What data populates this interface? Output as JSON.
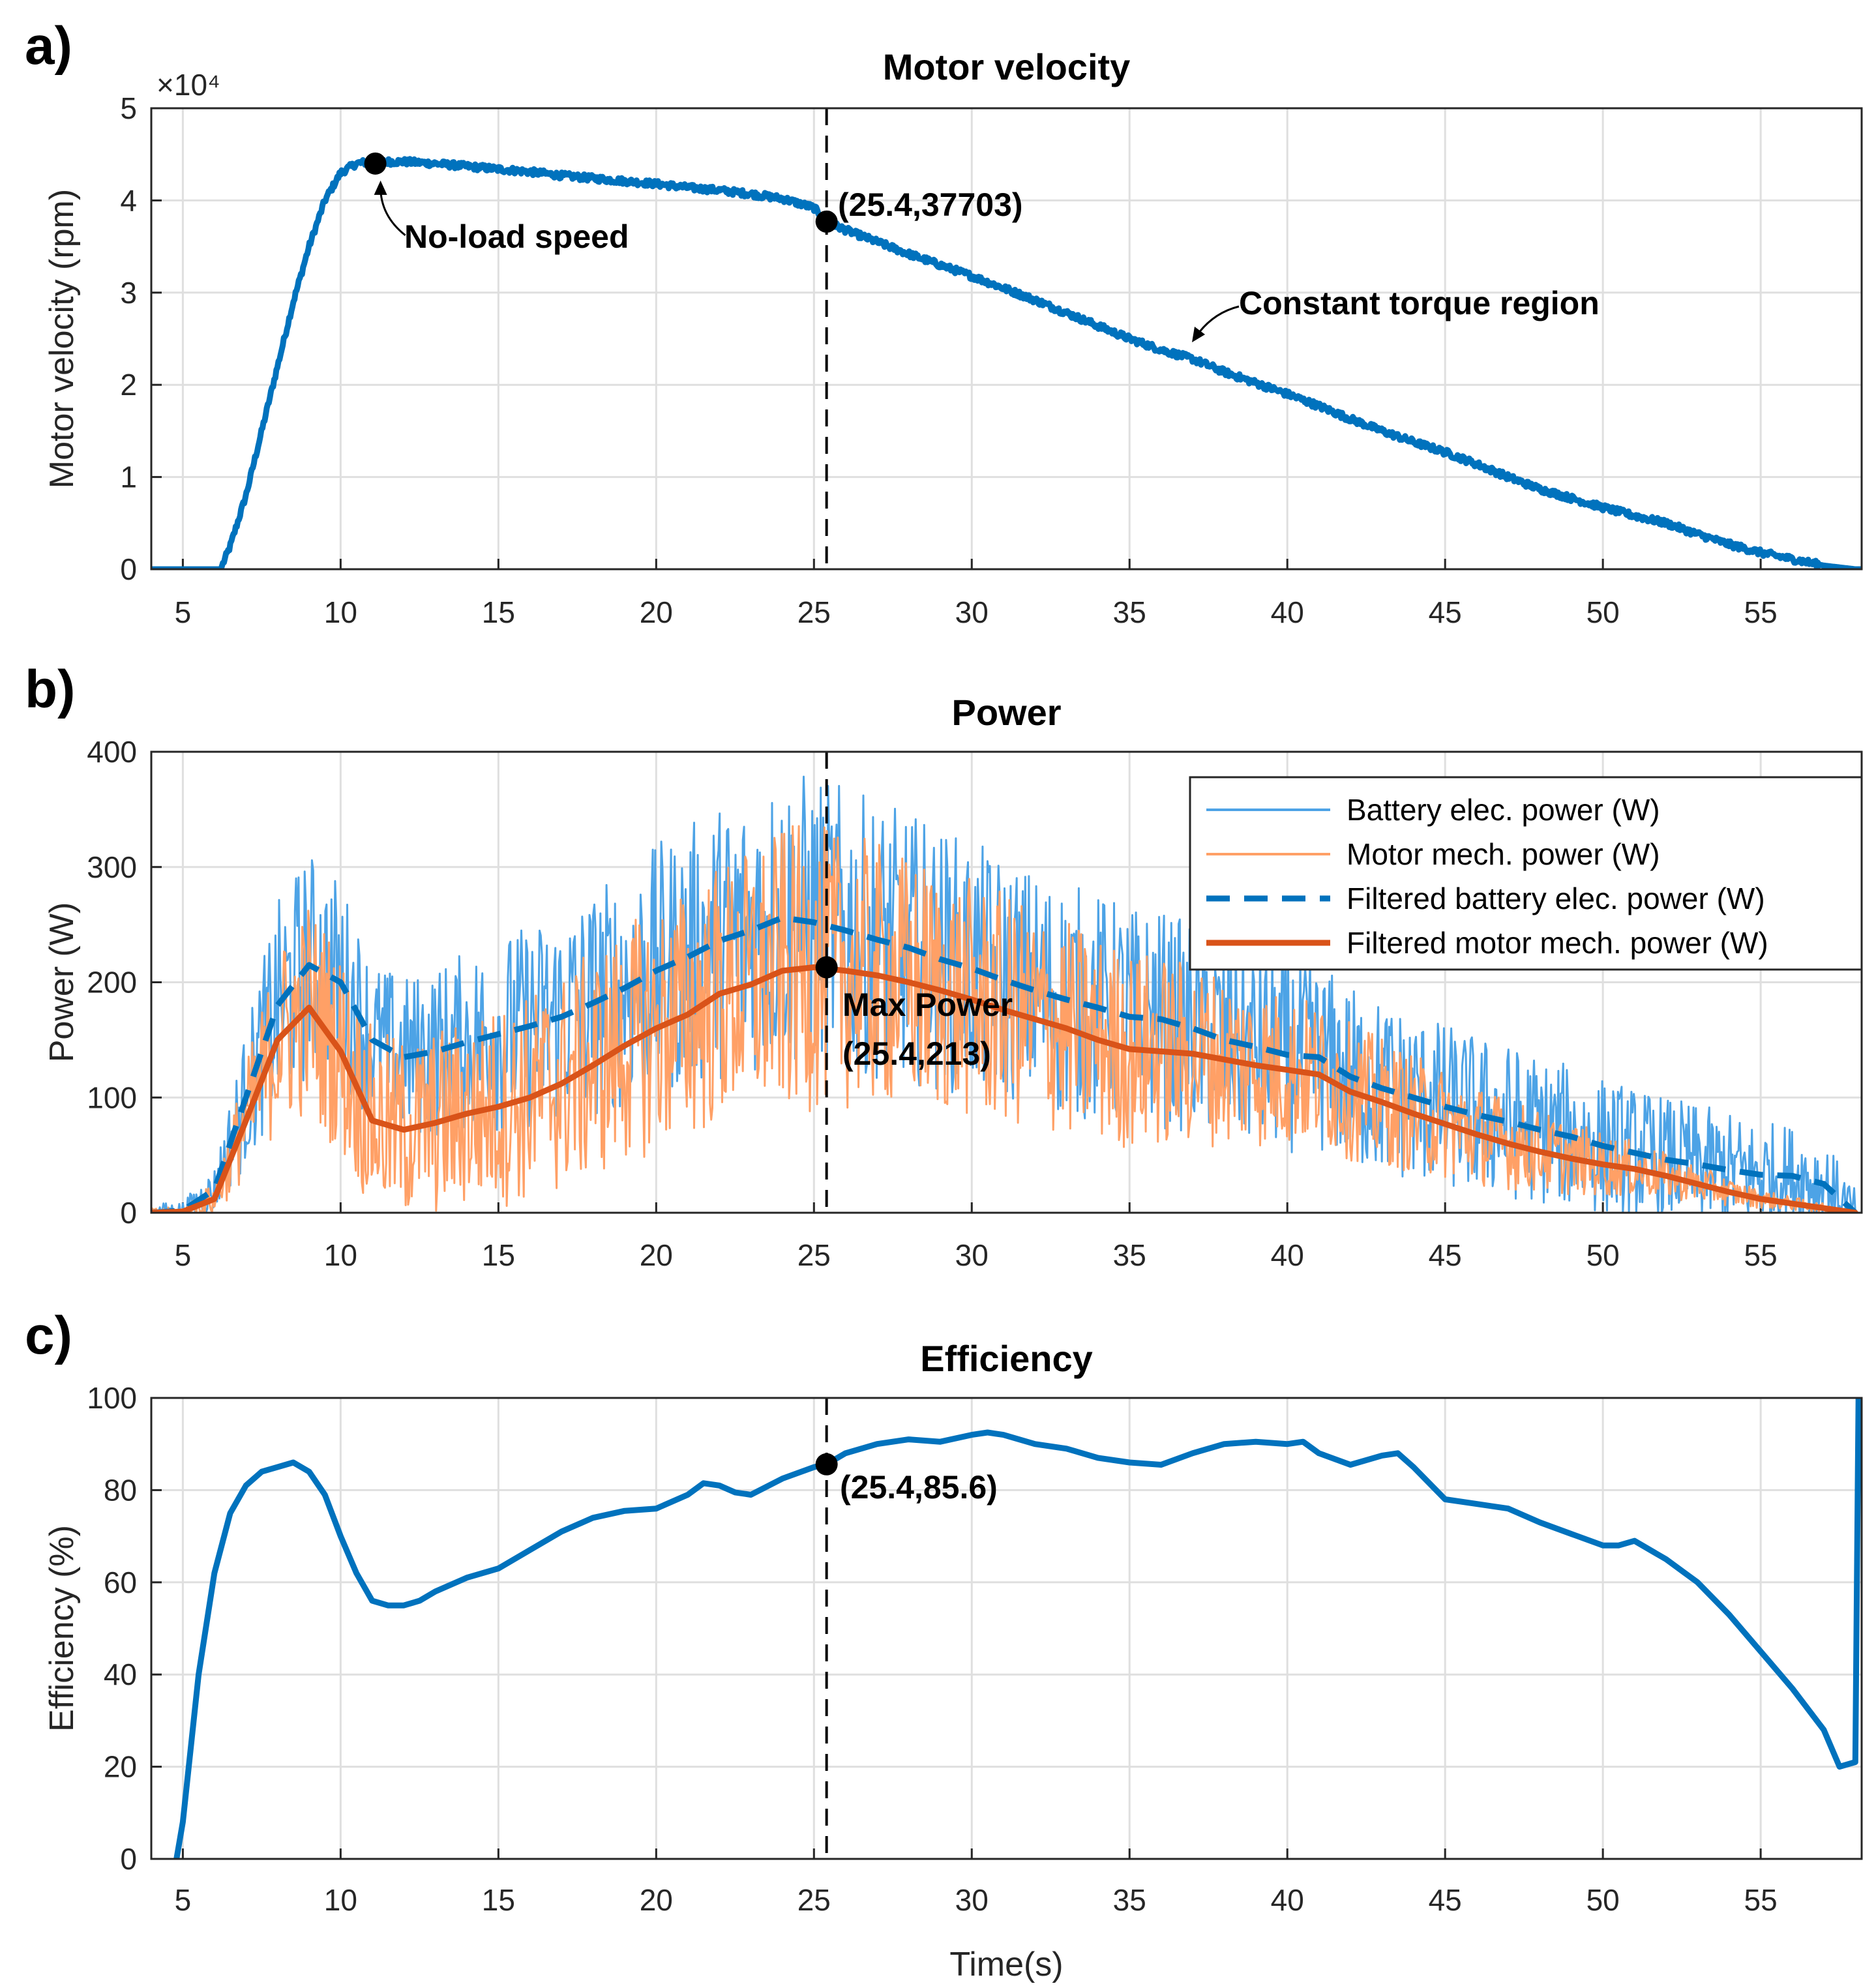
{
  "chart_data": [
    {
      "panel_label": "a)",
      "type": "line",
      "title": "Motor velocity",
      "xlabel": "",
      "ylabel": "Motor velocity (rpm)",
      "y_exponent": "×10⁴",
      "xlim": [
        4,
        58.2
      ],
      "ylim": [
        0,
        5
      ],
      "xticks": [
        5,
        10,
        15,
        20,
        25,
        30,
        35,
        40,
        45,
        50,
        55
      ],
      "yticks": [
        0,
        1,
        2,
        3,
        4,
        5
      ],
      "grid": true,
      "color": "#0072BD",
      "series": [
        {
          "name": "Motor velocity",
          "color": "#0072BD",
          "x": [
            4,
            5,
            6,
            6.2,
            6.5,
            7,
            7.5,
            8,
            8.5,
            9,
            9.5,
            10,
            10.5,
            11,
            12,
            13,
            14,
            15,
            16,
            17,
            18,
            19,
            20,
            21,
            22,
            23,
            24,
            25,
            25.4,
            26,
            27,
            28,
            29,
            30,
            31,
            32,
            33,
            34,
            35,
            36,
            37,
            38,
            39,
            40,
            41,
            42,
            43,
            44,
            45,
            46,
            47,
            48,
            49,
            50,
            51,
            52,
            53,
            54,
            55,
            56,
            57,
            57.5,
            58,
            58.2
          ],
          "y": [
            0,
            0,
            0,
            0,
            0.25,
            0.8,
            1.5,
            2.2,
            2.9,
            3.5,
            4.0,
            4.3,
            4.4,
            4.42,
            4.42,
            4.4,
            4.37,
            4.34,
            4.31,
            4.27,
            4.24,
            4.21,
            4.18,
            4.14,
            4.11,
            4.07,
            4.02,
            3.92,
            3.7703,
            3.68,
            3.55,
            3.42,
            3.3,
            3.18,
            3.05,
            2.92,
            2.78,
            2.64,
            2.5,
            2.38,
            2.28,
            2.14,
            2.02,
            1.9,
            1.77,
            1.63,
            1.5,
            1.38,
            1.27,
            1.14,
            1.0,
            0.87,
            0.77,
            0.67,
            0.58,
            0.5,
            0.38,
            0.27,
            0.18,
            0.11,
            0.04,
            0.02,
            0,
            0
          ]
        }
      ],
      "markers": [
        {
          "x": 11.1,
          "y": 4.4,
          "label": "No-load speed"
        },
        {
          "x": 25.4,
          "y": 3.7703,
          "label": "(25.4,37703)"
        }
      ],
      "annotations": [
        {
          "text": "Constant torque region",
          "x": 37,
          "y": 2.5
        }
      ],
      "vline_x": 25.4
    },
    {
      "panel_label": "b)",
      "type": "line",
      "title": "Power",
      "xlabel": "",
      "ylabel": "Power (W)",
      "xlim": [
        4,
        58.2
      ],
      "ylim": [
        0,
        400
      ],
      "xticks": [
        5,
        10,
        15,
        20,
        25,
        30,
        35,
        40,
        45,
        50,
        55
      ],
      "yticks": [
        0,
        100,
        200,
        300,
        400
      ],
      "grid": true,
      "legend_position": "top-right",
      "series": [
        {
          "name": "Battery elec. power (W)",
          "color": "#4DA3E6",
          "style": "thin-noisy",
          "x": [
            4,
            5,
            6,
            7,
            8,
            9,
            10,
            11,
            12,
            13,
            14,
            15,
            16,
            17,
            18,
            19,
            20,
            21,
            22,
            23,
            24,
            25,
            26,
            27,
            28,
            29,
            30,
            31,
            32,
            33,
            34,
            35,
            36,
            37,
            38,
            39,
            40,
            41,
            42,
            43,
            44,
            45,
            46,
            47,
            48,
            49,
            50,
            51,
            52,
            53,
            54,
            55,
            56,
            57,
            58
          ],
          "y": [
            0,
            2,
            20,
            100,
            180,
            215,
            200,
            150,
            135,
            140,
            148,
            155,
            162,
            170,
            182,
            195,
            210,
            222,
            236,
            245,
            256,
            252,
            245,
            237,
            230,
            220,
            212,
            202,
            193,
            185,
            178,
            170,
            168,
            160,
            150,
            144,
            137,
            135,
            118,
            108,
            100,
            92,
            85,
            79,
            72,
            66,
            58,
            52,
            46,
            42,
            37,
            33,
            32,
            25,
            0
          ],
          "noise_amplitude": [
            8,
            8,
            20,
            60,
            90,
            100,
            90,
            70,
            70,
            75,
            80,
            85,
            90,
            95,
            100,
            105,
            110,
            115,
            120,
            125,
            130,
            130,
            125,
            120,
            118,
            115,
            110,
            108,
            105,
            103,
            100,
            98,
            95,
            92,
            90,
            88,
            85,
            83,
            80,
            78,
            75,
            73,
            70,
            68,
            65,
            62,
            60,
            57,
            55,
            52,
            50,
            47,
            45,
            40,
            20
          ]
        },
        {
          "name": "Motor mech. power (W)",
          "color": "#FFA066",
          "style": "thin-noisy",
          "x": [
            4,
            5,
            6,
            7,
            8,
            9,
            10,
            11,
            12,
            13,
            14,
            15,
            16,
            17,
            18,
            19,
            20,
            21,
            22,
            23,
            24,
            25,
            26,
            27,
            28,
            29,
            30,
            31,
            32,
            33,
            34,
            35,
            36,
            37,
            38,
            39,
            40,
            41,
            42,
            43,
            44,
            45,
            46,
            47,
            48,
            49,
            50,
            51,
            52,
            53,
            54,
            55,
            56,
            57,
            58
          ],
          "y": [
            0,
            1,
            12,
            80,
            150,
            178,
            140,
            80,
            72,
            78,
            86,
            92,
            100,
            112,
            128,
            145,
            160,
            172,
            190,
            198,
            210,
            213,
            210,
            206,
            200,
            193,
            185,
            176,
            168,
            160,
            150,
            142,
            140,
            138,
            133,
            128,
            124,
            120,
            105,
            96,
            86,
            77,
            68,
            60,
            53,
            47,
            42,
            38,
            32,
            25,
            18,
            12,
            8,
            4,
            0
          ],
          "noise_amplitude": [
            4,
            4,
            15,
            50,
            80,
            95,
            90,
            80,
            80,
            82,
            85,
            88,
            92,
            96,
            100,
            104,
            108,
            112,
            116,
            120,
            125,
            125,
            120,
            116,
            112,
            108,
            105,
            102,
            98,
            95,
            92,
            88,
            85,
            80,
            76,
            72,
            68,
            64,
            60,
            56,
            52,
            48,
            44,
            40,
            36,
            32,
            28,
            24,
            20,
            16,
            12,
            8,
            6,
            4,
            2
          ]
        },
        {
          "name": "Filtered battery elec. power (W)",
          "color": "#0072BD",
          "style": "thick-dashed",
          "x": [
            4,
            5,
            6,
            7,
            8,
            9,
            10,
            11,
            12,
            13,
            14,
            15,
            16,
            17,
            18,
            19,
            20,
            21,
            22,
            23,
            24,
            25,
            26,
            27,
            28,
            29,
            30,
            31,
            32,
            33,
            34,
            35,
            36,
            37,
            38,
            39,
            40,
            41,
            42,
            43,
            44,
            45,
            46,
            47,
            48,
            49,
            50,
            51,
            52,
            53,
            54,
            55,
            56,
            57,
            58
          ],
          "y": [
            0,
            2,
            20,
            100,
            180,
            215,
            200,
            150,
            135,
            140,
            148,
            155,
            162,
            170,
            182,
            195,
            210,
            222,
            236,
            245,
            256,
            252,
            245,
            237,
            230,
            220,
            212,
            202,
            193,
            185,
            178,
            170,
            168,
            160,
            150,
            144,
            137,
            135,
            118,
            108,
            100,
            92,
            85,
            79,
            72,
            66,
            58,
            52,
            46,
            42,
            37,
            33,
            32,
            25,
            0
          ]
        },
        {
          "name": "Filtered motor mech. power (W)",
          "color": "#D95319",
          "style": "thick-solid",
          "x": [
            4,
            5,
            6,
            7,
            8,
            9,
            10,
            11,
            12,
            13,
            14,
            15,
            16,
            17,
            18,
            19,
            20,
            21,
            22,
            23,
            24,
            25,
            26,
            27,
            28,
            29,
            30,
            31,
            32,
            33,
            34,
            35,
            36,
            37,
            38,
            39,
            40,
            41,
            42,
            43,
            44,
            45,
            46,
            47,
            48,
            49,
            50,
            51,
            52,
            53,
            54,
            55,
            56,
            57,
            58
          ],
          "y": [
            0,
            1,
            12,
            80,
            150,
            178,
            140,
            80,
            72,
            78,
            86,
            92,
            100,
            112,
            128,
            145,
            160,
            172,
            190,
            198,
            210,
            213,
            210,
            206,
            200,
            193,
            185,
            176,
            168,
            160,
            150,
            142,
            140,
            138,
            133,
            128,
            124,
            120,
            105,
            96,
            86,
            77,
            68,
            60,
            53,
            47,
            42,
            38,
            32,
            25,
            18,
            12,
            8,
            4,
            0
          ]
        }
      ],
      "markers": [
        {
          "x": 25.4,
          "y": 213,
          "label_line1": "Max Power",
          "label_line2": "(25.4,213)"
        }
      ],
      "vline_x": 25.4
    },
    {
      "panel_label": "c)",
      "type": "line",
      "title": "Efficiency",
      "xlabel": "Time(s)",
      "ylabel": "Efficiency (%)",
      "xlim": [
        4,
        58.2
      ],
      "ylim": [
        0,
        100
      ],
      "xticks": [
        5,
        10,
        15,
        20,
        25,
        30,
        35,
        40,
        45,
        50,
        55
      ],
      "yticks": [
        0,
        20,
        40,
        60,
        80,
        100
      ],
      "grid": true,
      "series": [
        {
          "name": "Efficiency",
          "color": "#0072BD",
          "x": [
            4.8,
            5,
            5.5,
            6,
            6.5,
            7,
            7.5,
            8,
            8.5,
            9,
            9.5,
            10,
            10.5,
            11,
            11.5,
            12,
            12.5,
            13,
            14,
            15,
            16,
            17,
            18,
            19,
            20,
            21,
            21.5,
            22,
            22.5,
            23,
            24,
            25,
            25.4,
            26,
            27,
            28,
            29,
            30,
            30.5,
            31,
            32,
            33,
            34,
            35,
            36,
            37,
            38,
            39,
            40,
            40.5,
            41,
            42,
            43,
            43.5,
            44,
            45,
            46,
            47,
            48,
            49,
            50,
            50.5,
            51,
            52,
            53,
            54,
            55,
            56,
            57,
            57.5,
            58,
            58.1
          ],
          "y": [
            0,
            8,
            40,
            62,
            75,
            81,
            84,
            85,
            86,
            84,
            79,
            70,
            62,
            56,
            55,
            55,
            56,
            58,
            61,
            63,
            67,
            71,
            74,
            75.5,
            76,
            79,
            81.5,
            81,
            79.5,
            79,
            82.5,
            85,
            85.6,
            88,
            90,
            91,
            90.5,
            92,
            92.5,
            92,
            90,
            89,
            87,
            86,
            85.5,
            88,
            90,
            90.5,
            90,
            90.5,
            88,
            85.5,
            87.5,
            88,
            85,
            78,
            77,
            76,
            73,
            70.5,
            68,
            68,
            69,
            65,
            60,
            53,
            45,
            37,
            28,
            20,
            21,
            100
          ]
        }
      ],
      "markers": [
        {
          "x": 25.4,
          "y": 85.6,
          "label": "(25.4,85.6)"
        }
      ],
      "vline_x": 25.4
    }
  ]
}
